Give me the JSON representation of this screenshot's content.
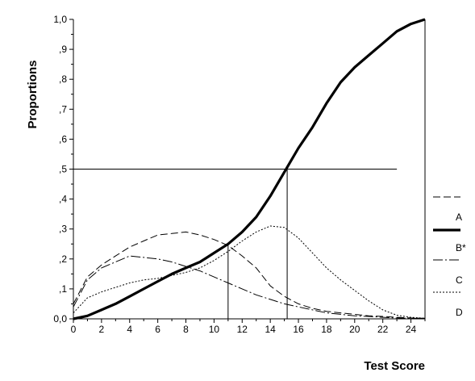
{
  "chart_data": {
    "type": "line",
    "title": "",
    "xlabel": "Test Score",
    "ylabel": "Proportions",
    "xlim": [
      0,
      25
    ],
    "ylim": [
      0,
      1
    ],
    "x_ticks": [
      0,
      2,
      4,
      6,
      8,
      10,
      12,
      14,
      16,
      18,
      20,
      22,
      24
    ],
    "y_ticks": [
      {
        "value": 0.0,
        "label": "0,0"
      },
      {
        "value": 0.1,
        "label": ",1"
      },
      {
        "value": 0.2,
        "label": ",2"
      },
      {
        "value": 0.3,
        "label": ",3"
      },
      {
        "value": 0.4,
        "label": ",4"
      },
      {
        "value": 0.5,
        "label": ",5"
      },
      {
        "value": 0.6,
        "label": ",6"
      },
      {
        "value": 0.7,
        "label": ",7"
      },
      {
        "value": 0.8,
        "label": ",8"
      },
      {
        "value": 0.9,
        "label": ",9"
      },
      {
        "value": 1.0,
        "label": "1,0"
      }
    ],
    "grid": false,
    "legend_position": "right",
    "reference_lines": {
      "horizontal": {
        "y": 0.5,
        "x_from": 0,
        "x_to": 23
      },
      "vertical": [
        {
          "x": 11,
          "y_to": 0.25
        },
        {
          "x": 15.2,
          "y_to": 0.5
        }
      ]
    },
    "series": [
      {
        "name": "A",
        "style": "long-dash",
        "x": [
          0,
          1,
          2,
          3,
          4,
          5,
          6,
          7,
          8,
          9,
          10,
          11,
          12,
          13,
          14,
          15,
          16,
          17,
          18,
          19,
          20,
          21,
          22,
          23,
          24,
          25
        ],
        "y": [
          0.05,
          0.14,
          0.18,
          0.21,
          0.24,
          0.26,
          0.28,
          0.285,
          0.29,
          0.28,
          0.265,
          0.245,
          0.21,
          0.17,
          0.11,
          0.075,
          0.05,
          0.035,
          0.025,
          0.02,
          0.015,
          0.01,
          0.008,
          0.005,
          0.003,
          0.002
        ]
      },
      {
        "name": "B*",
        "style": "thick-solid",
        "x": [
          0,
          1,
          2,
          3,
          4,
          5,
          6,
          7,
          8,
          9,
          10,
          11,
          12,
          13,
          14,
          15,
          16,
          17,
          18,
          19,
          20,
          21,
          22,
          23,
          24,
          25
        ],
        "y": [
          0.0,
          0.01,
          0.03,
          0.05,
          0.075,
          0.1,
          0.125,
          0.15,
          0.17,
          0.19,
          0.22,
          0.25,
          0.29,
          0.34,
          0.41,
          0.49,
          0.57,
          0.64,
          0.72,
          0.79,
          0.84,
          0.88,
          0.92,
          0.96,
          0.985,
          1.0
        ]
      },
      {
        "name": "C",
        "style": "dash-dot",
        "x": [
          0,
          1,
          2,
          3,
          4,
          5,
          6,
          7,
          8,
          9,
          10,
          11,
          12,
          13,
          14,
          15,
          16,
          17,
          18,
          19,
          20,
          21,
          22,
          23,
          24,
          25
        ],
        "y": [
          0.04,
          0.13,
          0.17,
          0.19,
          0.21,
          0.205,
          0.2,
          0.19,
          0.175,
          0.16,
          0.14,
          0.12,
          0.1,
          0.08,
          0.065,
          0.05,
          0.04,
          0.03,
          0.02,
          0.015,
          0.01,
          0.008,
          0.005,
          0.003,
          0.002,
          0.001
        ]
      },
      {
        "name": "D",
        "style": "dotted",
        "x": [
          0,
          1,
          2,
          3,
          4,
          5,
          6,
          7,
          8,
          9,
          10,
          11,
          12,
          13,
          14,
          15,
          16,
          17,
          18,
          19,
          20,
          21,
          22,
          23,
          24,
          25
        ],
        "y": [
          0.02,
          0.07,
          0.09,
          0.105,
          0.12,
          0.13,
          0.135,
          0.145,
          0.155,
          0.17,
          0.195,
          0.225,
          0.26,
          0.29,
          0.31,
          0.305,
          0.27,
          0.22,
          0.17,
          0.13,
          0.095,
          0.06,
          0.03,
          0.012,
          0.005,
          0.002
        ]
      }
    ]
  }
}
